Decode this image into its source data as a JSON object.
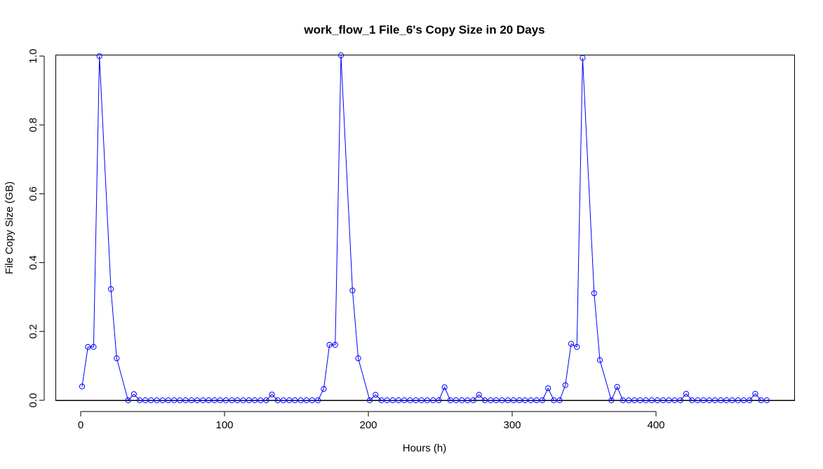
{
  "chart_data": {
    "type": "line",
    "title": "work_flow_1 File_6's Copy Size in 20 Days",
    "xlabel": "Hours (h)",
    "ylabel": "File Copy Size (GB)",
    "xlim": [
      -20,
      495
    ],
    "ylim": [
      0,
      1.0
    ],
    "x_ticks": [
      0,
      100,
      200,
      300,
      400
    ],
    "y_ticks": [
      0.0,
      0.2,
      0.4,
      0.6,
      0.8,
      1.0
    ],
    "x_tick_labels": [
      "0",
      "100",
      "200",
      "300",
      "400"
    ],
    "y_tick_labels": [
      "0.0",
      "0.2",
      "0.4",
      "0.6",
      "0.8",
      "1.0"
    ],
    "grid": false,
    "series": [
      {
        "color": "#0000ff",
        "marker": "open-circle",
        "x": [
          1,
          5,
          9,
          13,
          21,
          25,
          33,
          37,
          41,
          45,
          49,
          53,
          57,
          61,
          65,
          69,
          73,
          77,
          81,
          85,
          89,
          93,
          97,
          101,
          105,
          109,
          113,
          117,
          121,
          125,
          129,
          133,
          137,
          141,
          145,
          149,
          153,
          157,
          161,
          165,
          169,
          173,
          177,
          181,
          189,
          193,
          201,
          205,
          209,
          213,
          217,
          221,
          225,
          229,
          233,
          237,
          241,
          245,
          249,
          253,
          257,
          261,
          265,
          269,
          273,
          277,
          281,
          285,
          289,
          293,
          297,
          301,
          305,
          309,
          313,
          317,
          321,
          325,
          329,
          333,
          337,
          341,
          345,
          349,
          357,
          361,
          369,
          373,
          377,
          381,
          385,
          389,
          393,
          397,
          401,
          405,
          409,
          413,
          417,
          421,
          425,
          429,
          433,
          437,
          441,
          445,
          449,
          453,
          457,
          461,
          465,
          469,
          473,
          477
        ],
        "y": [
          0.04,
          0.155,
          0.155,
          1.0,
          0.323,
          0.122,
          0.0,
          0.018,
          0.0,
          0.0,
          0.0,
          0.0,
          0.0,
          0.0,
          0.0,
          0.0,
          0.0,
          0.0,
          0.0,
          0.0,
          0.0,
          0.0,
          0.0,
          0.0,
          0.0,
          0.0,
          0.0,
          0.0,
          0.0,
          0.0,
          0.0,
          0.017,
          0.0,
          0.0,
          0.0,
          0.0,
          0.0,
          0.0,
          0.0,
          0.0,
          0.033,
          0.161,
          0.161,
          1.002,
          0.319,
          0.122,
          0.0,
          0.016,
          0.0,
          0.0,
          0.0,
          0.0,
          0.0,
          0.0,
          0.0,
          0.0,
          0.0,
          0.0,
          0.0,
          0.038,
          0.0,
          0.0,
          0.0,
          0.0,
          0.0,
          0.016,
          0.0,
          0.0,
          0.0,
          0.0,
          0.0,
          0.0,
          0.0,
          0.0,
          0.0,
          0.0,
          0.0,
          0.035,
          0.0,
          0.0,
          0.044,
          0.164,
          0.155,
          0.995,
          0.311,
          0.117,
          0.0,
          0.039,
          0.0,
          0.0,
          0.0,
          0.0,
          0.0,
          0.0,
          0.0,
          0.0,
          0.0,
          0.0,
          0.0,
          0.019,
          0.0,
          0.0,
          0.0,
          0.0,
          0.0,
          0.0,
          0.0,
          0.0,
          0.0,
          0.0,
          0.0,
          0.019,
          0.0,
          0.0
        ]
      }
    ]
  }
}
